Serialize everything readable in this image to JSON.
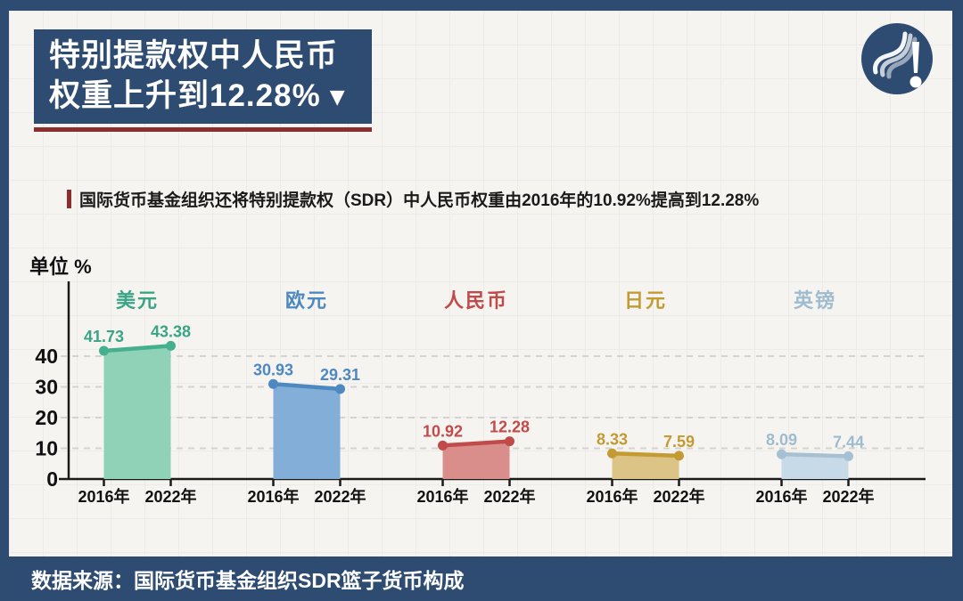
{
  "header": {
    "title_line1": "特别提款权中人民币",
    "title_line2": "权重上升到12.28%",
    "dropdown_icon": "▼"
  },
  "subtitle": {
    "text": "国际货币基金组织还将特别提款权（SDR）中人民币权重由2016年的10.92%提高到12.28%"
  },
  "chart_data": {
    "type": "area",
    "title": "特别提款权中人民币权重上升到12.28%",
    "unit_label": "单位 %",
    "x_categories": [
      "2016年",
      "2022年"
    ],
    "y_ticks": [
      0,
      10,
      20,
      30,
      40
    ],
    "ylim": [
      0,
      45
    ],
    "grid": "dashed horizontal gridlines at 10/20/30/40",
    "legend_position": "series name above each area pair",
    "series": [
      {
        "name": "美元",
        "values": [
          41.73,
          43.38
        ],
        "line_color": "#45b08e",
        "fill_color": "#90d2b7",
        "label_color": "#3aa485"
      },
      {
        "name": "欧元",
        "values": [
          30.93,
          29.31
        ],
        "line_color": "#4e88c0",
        "fill_color": "#82aed8",
        "label_color": "#4e88c0"
      },
      {
        "name": "人民币",
        "values": [
          10.92,
          12.28
        ],
        "line_color": "#c14b4a",
        "fill_color": "#d98e8c",
        "label_color": "#c14b4a"
      },
      {
        "name": "日元",
        "values": [
          8.33,
          7.59
        ],
        "line_color": "#c49b33",
        "fill_color": "#dcc487",
        "label_color": "#c49b33"
      },
      {
        "name": "英镑",
        "values": [
          8.09,
          7.44
        ],
        "line_color": "#a7c1d3",
        "fill_color": "#c7dae7",
        "label_color": "#9fbccf"
      }
    ]
  },
  "footer": {
    "text": "数据来源：国际货币基金组织SDR篮子货币构成"
  },
  "colors": {
    "navy": "#2e4c72",
    "dark_red": "#8e2d2d",
    "canvas_bg": "#f5f4f1",
    "axis": "#1a1a1a",
    "gridline": "#d4d3cf"
  }
}
